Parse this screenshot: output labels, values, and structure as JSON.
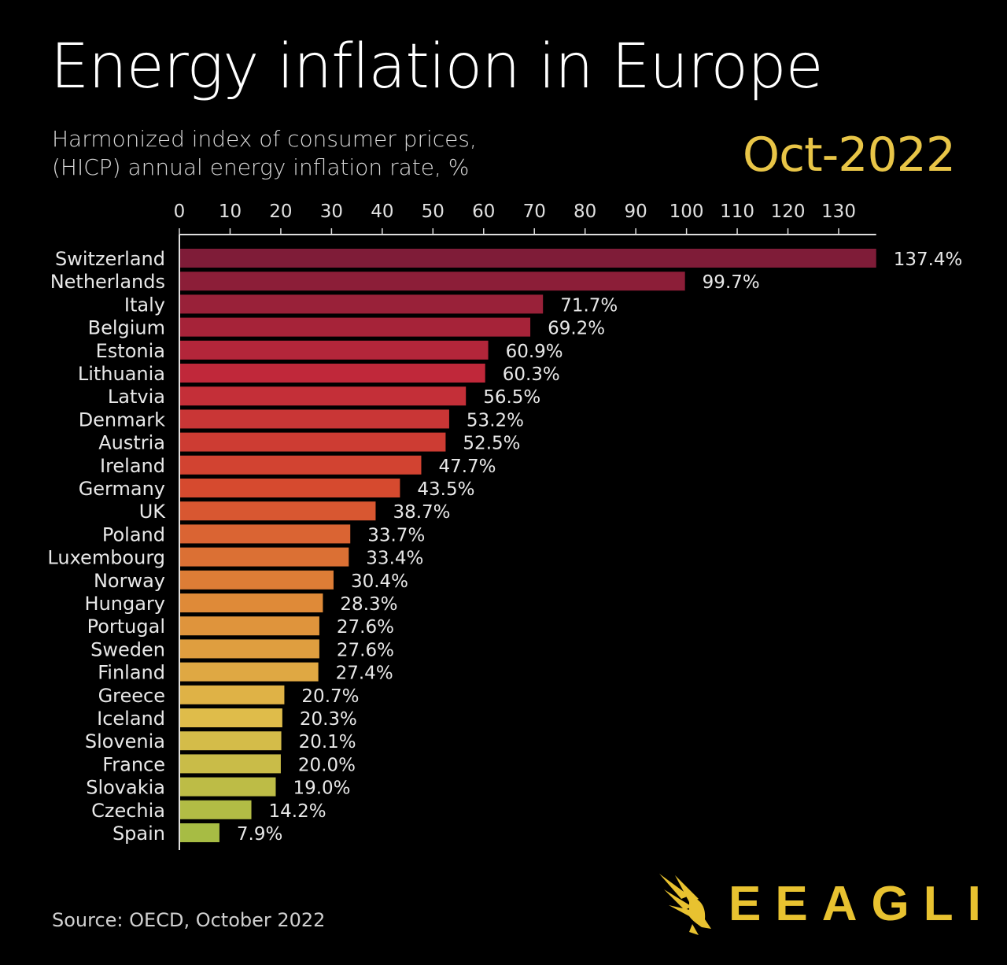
{
  "title": "Energy inflation in Europe",
  "subtitle_line1": "Harmonized index of consumer prices,",
  "subtitle_line2": "(HICP) annual energy inflation rate, %",
  "date_label": "Oct-2022",
  "source": "Source: OECD, October 2022",
  "logo": {
    "text": "EEAGLI",
    "icon": "eagle-icon",
    "color": "#e8c230"
  },
  "colors": {
    "background": "#000000",
    "date": "#e8c547",
    "bar_gradient_stops": [
      "#7f1c38",
      "#c0283a",
      "#d64a2f",
      "#df8a38",
      "#dfbc4a",
      "#a7bc44"
    ]
  },
  "chart_data": {
    "type": "bar",
    "orientation": "horizontal",
    "xlim": [
      0,
      137.4
    ],
    "xticks": [
      0,
      10,
      20,
      30,
      40,
      50,
      60,
      70,
      80,
      90,
      100,
      110,
      120,
      130
    ],
    "value_suffix": "%",
    "grid": false,
    "categories": [
      "Switzerland",
      "Netherlands",
      "Italy",
      "Belgium",
      "Estonia",
      "Lithuania",
      "Latvia",
      "Denmark",
      "Austria",
      "Ireland",
      "Germany",
      "UK",
      "Poland",
      "Luxembourg",
      "Norway",
      "Hungary",
      "Portugal",
      "Sweden",
      "Finland",
      "Greece",
      "Iceland",
      "Slovenia",
      "France",
      "Slovakia",
      "Czechia",
      "Spain"
    ],
    "values": [
      137.4,
      99.7,
      71.7,
      69.2,
      60.9,
      60.3,
      56.5,
      53.2,
      52.5,
      47.7,
      43.5,
      38.7,
      33.7,
      33.4,
      30.4,
      28.3,
      27.6,
      27.6,
      27.4,
      20.7,
      20.3,
      20.1,
      20.0,
      19.0,
      14.2,
      7.9
    ],
    "labels": [
      "137.4%",
      "99.7%",
      "71.7%",
      "69.2%",
      "60.9%",
      "60.3%",
      "56.5%",
      "53.2%",
      "52.5%",
      "47.7%",
      "43.5%",
      "38.7%",
      "33.7%",
      "33.4%",
      "30.4%",
      "28.3%",
      "27.6%",
      "27.6%",
      "27.4%",
      "20.7%",
      "20.3%",
      "20.1%",
      "20.0%",
      "19.0%",
      "14.2%",
      "7.9%"
    ]
  }
}
